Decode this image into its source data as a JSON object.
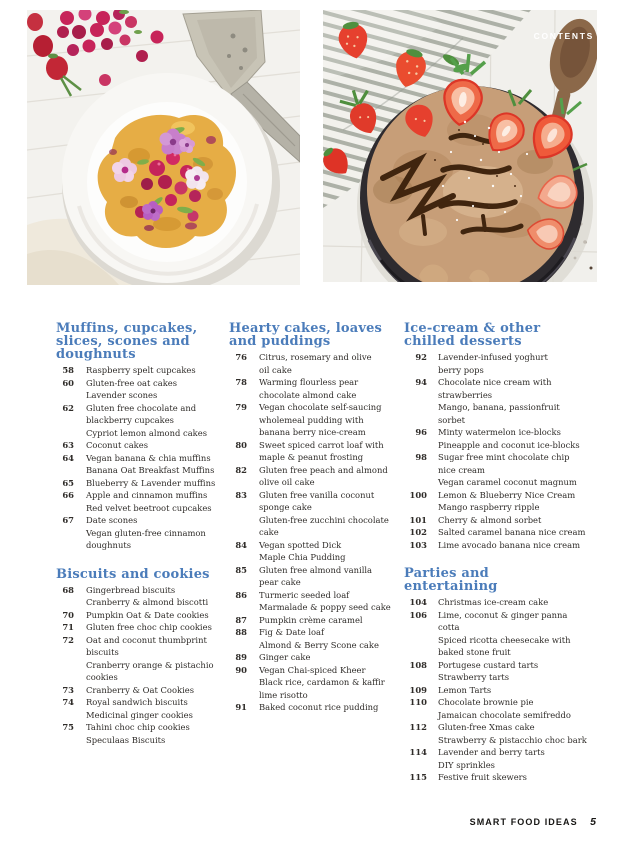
{
  "page": {
    "contents_label": "CONTENTS",
    "footer": {
      "magazine": "SMART FOOD IDEAS",
      "page_number": "5"
    }
  },
  "colors": {
    "heading_blue": "#4b7cba",
    "body_text": "#2f2c29",
    "footer_text": "#171614",
    "contents_label_white": "#ffffff"
  },
  "toc": {
    "columns": [
      {
        "sections": [
          {
            "heading": "Muffins, cupcakes,\nslices, scones and\ndoughnuts",
            "entries": [
              {
                "p": "58",
                "t": "Raspberry spelt cupcakes"
              },
              {
                "p": "60",
                "t": "Gluten-free oat cakes"
              },
              {
                "p": "",
                "t": "Lavender scones"
              },
              {
                "p": "62",
                "t": "Gluten free chocolate and\nblackberry cupcakes"
              },
              {
                "p": "",
                "t": "Cypriot lemon almond cakes"
              },
              {
                "p": "63",
                "t": "Coconut cakes"
              },
              {
                "p": "64",
                "t": "Vegan banana & chia muffins"
              },
              {
                "p": "",
                "t": "Banana Oat Breakfast Muffins"
              },
              {
                "p": "65",
                "t": "Blueberry & Lavender muffins"
              },
              {
                "p": "66",
                "t": "Apple and cinnamon muffins"
              },
              {
                "p": "",
                "t": "Red velvet beetroot cupcakes"
              },
              {
                "p": "67",
                "t": "Date scones"
              },
              {
                "p": "",
                "t": "Vegan gluten-free cinnamon\ndoughnuts"
              }
            ]
          },
          {
            "heading": "Biscuits and cookies",
            "entries": [
              {
                "p": "68",
                "t": "Gingerbread biscuits"
              },
              {
                "p": "",
                "t": "Cranberry & almond biscotti"
              },
              {
                "p": "70",
                "t": "Pumpkin Oat & Date cookies"
              },
              {
                "p": "71",
                "t": "Gluten free choc chip cookies"
              },
              {
                "p": "72",
                "t": "Oat and coconut thumbprint\nbiscuits"
              },
              {
                "p": "",
                "t": "Cranberry orange & pistachio\ncookies"
              },
              {
                "p": "73",
                "t": "Cranberry & Oat Cookies"
              },
              {
                "p": "74",
                "t": "Royal sandwich biscuits"
              },
              {
                "p": "",
                "t": "Medicinal ginger cookies"
              },
              {
                "p": "75",
                "t": "Tahini choc chip cookies"
              },
              {
                "p": "",
                "t": "Speculaas Biscuits"
              }
            ]
          }
        ]
      },
      {
        "sections": [
          {
            "heading": "Hearty cakes, loaves\nand puddings",
            "entries": [
              {
                "p": "76",
                "t": "Citrus, rosemary and olive\noil cake"
              },
              {
                "p": "78",
                "t": "Warming flourless pear\nchocolate almond cake"
              },
              {
                "p": "79",
                "t": "Vegan chocolate self-saucing\nwholemeal pudding with\nbanana berry nice-cream"
              },
              {
                "p": "80",
                "t": "Sweet spiced carrot loaf with\nmaple & peanut frosting"
              },
              {
                "p": "82",
                "t": "Gluten free peach and almond\nolive oil cake"
              },
              {
                "p": "83",
                "t": "Gluten free vanilla coconut\nsponge cake"
              },
              {
                "p": "",
                "t": "Gluten-free zucchini chocolate\ncake"
              },
              {
                "p": "84",
                "t": "Vegan spotted Dick"
              },
              {
                "p": "",
                "t": "Maple Chia Pudding"
              },
              {
                "p": "85",
                "t": "Gluten free almond vanilla\npear cake"
              },
              {
                "p": "86",
                "t": "Turmeric seeded loaf"
              },
              {
                "p": "",
                "t": "Marmalade & poppy seed cake"
              },
              {
                "p": "87",
                "t": "Pumpkin crème caramel"
              },
              {
                "p": "88",
                "t": "Fig & Date loaf"
              },
              {
                "p": "",
                "t": "Almond & Berry Scone cake"
              },
              {
                "p": "89",
                "t": "Ginger cake"
              },
              {
                "p": "90",
                "t": "Vegan Chai-spiced Kheer"
              },
              {
                "p": "",
                "t": "Black rice, cardamon & kaffir\nlime risotto"
              },
              {
                "p": "91",
                "t": "Baked coconut rice pudding"
              }
            ]
          }
        ]
      },
      {
        "sections": [
          {
            "heading": "Ice-cream & other\nchilled desserts",
            "entries": [
              {
                "p": "92",
                "t": "Lavender-infused yoghurt\nberry pops"
              },
              {
                "p": "94",
                "t": "Chocolate nice cream with\nstrawberries"
              },
              {
                "p": "",
                "t": "Mango, banana, passionfruit\nsorbet"
              },
              {
                "p": "96",
                "t": "Minty watermelon ice-blocks"
              },
              {
                "p": "",
                "t": "Pineapple and coconut ice-blocks"
              },
              {
                "p": "98",
                "t": "Sugar free mint chocolate chip\nnice cream"
              },
              {
                "p": "",
                "t": "Vegan caramel coconut magnum"
              },
              {
                "p": "100",
                "t": "Lemon & Blueberry Nice Cream"
              },
              {
                "p": "",
                "t": "Mango raspberry ripple"
              },
              {
                "p": "101",
                "t": "Cherry & almond sorbet"
              },
              {
                "p": "102",
                "t": "Salted caramel banana nice cream"
              },
              {
                "p": "103",
                "t": "Lime avocado banana nice cream"
              }
            ]
          },
          {
            "heading": "Parties and\nentertaining",
            "entries": [
              {
                "p": "104",
                "t": "Christmas ice-cream cake"
              },
              {
                "p": "106",
                "t": "Lime, coconut & ginger panna\ncotta"
              },
              {
                "p": "",
                "t": "Spiced ricotta cheesecake with\nbaked stone fruit"
              },
              {
                "p": "108",
                "t": "Portugese custard tarts"
              },
              {
                "p": "",
                "t": "Strawberry tarts"
              },
              {
                "p": "109",
                "t": "Lemon Tarts"
              },
              {
                "p": "110",
                "t": "Chocolate brownie pie"
              },
              {
                "p": "",
                "t": "Jamaican chocolate semifreddo"
              },
              {
                "p": "112",
                "t": "Gluten-free Xmas cake"
              },
              {
                "p": "",
                "t": "Strawberry & pistacchio choc bark"
              },
              {
                "p": "114",
                "t": "Lavender and berry tarts"
              },
              {
                "p": "",
                "t": "DIY sprinkles"
              },
              {
                "p": "115",
                "t": "Festive fruit skewers"
              }
            ]
          }
        ]
      }
    ]
  }
}
